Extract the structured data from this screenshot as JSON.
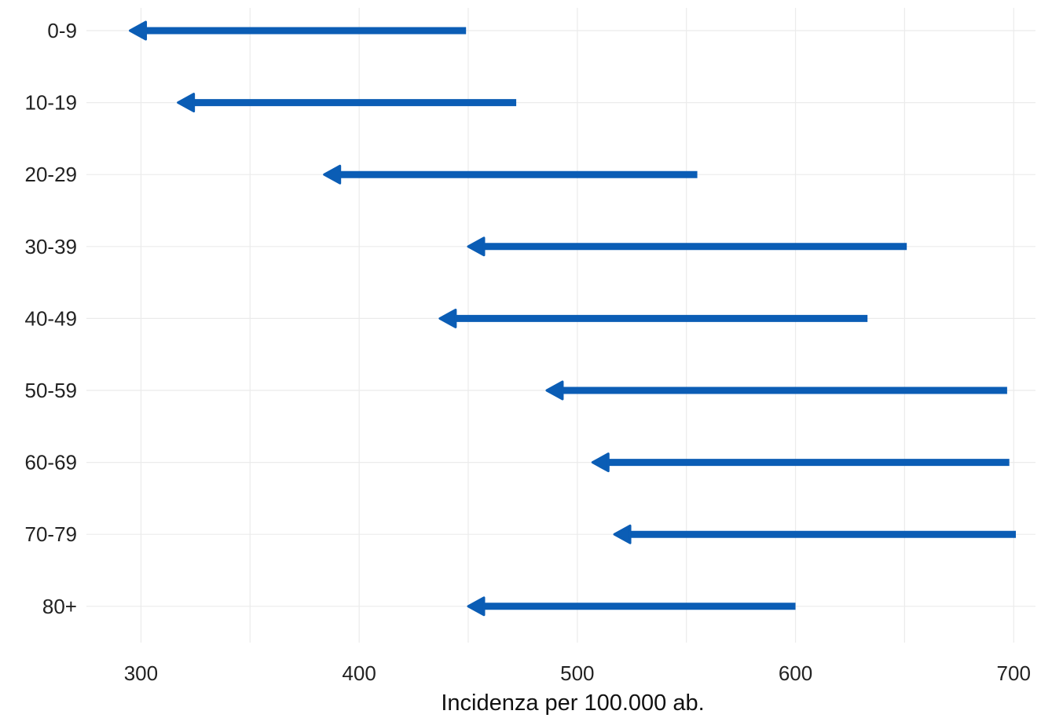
{
  "chart_data": {
    "type": "arrow",
    "title": "",
    "xlabel": "Incidenza per 100.000 ab.",
    "ylabel": "",
    "xlim": [
      275,
      710
    ],
    "x_ticks": [
      300,
      400,
      500,
      600,
      700
    ],
    "categories": [
      "0-9",
      "10-19",
      "20-29",
      "30-39",
      "40-49",
      "50-59",
      "60-69",
      "70-79",
      "80+"
    ],
    "series": [
      {
        "values": [
          {
            "from": 449,
            "to": 295
          },
          {
            "from": 472,
            "to": 317
          },
          {
            "from": 555,
            "to": 384
          },
          {
            "from": 651,
            "to": 450
          },
          {
            "from": 633,
            "to": 437
          },
          {
            "from": 697,
            "to": 486
          },
          {
            "from": 698,
            "to": 507
          },
          {
            "from": 701,
            "to": 517
          },
          {
            "from": 600,
            "to": 450
          }
        ]
      }
    ],
    "arrow_color": "#0b5db5",
    "grid": true,
    "legend": "none"
  }
}
